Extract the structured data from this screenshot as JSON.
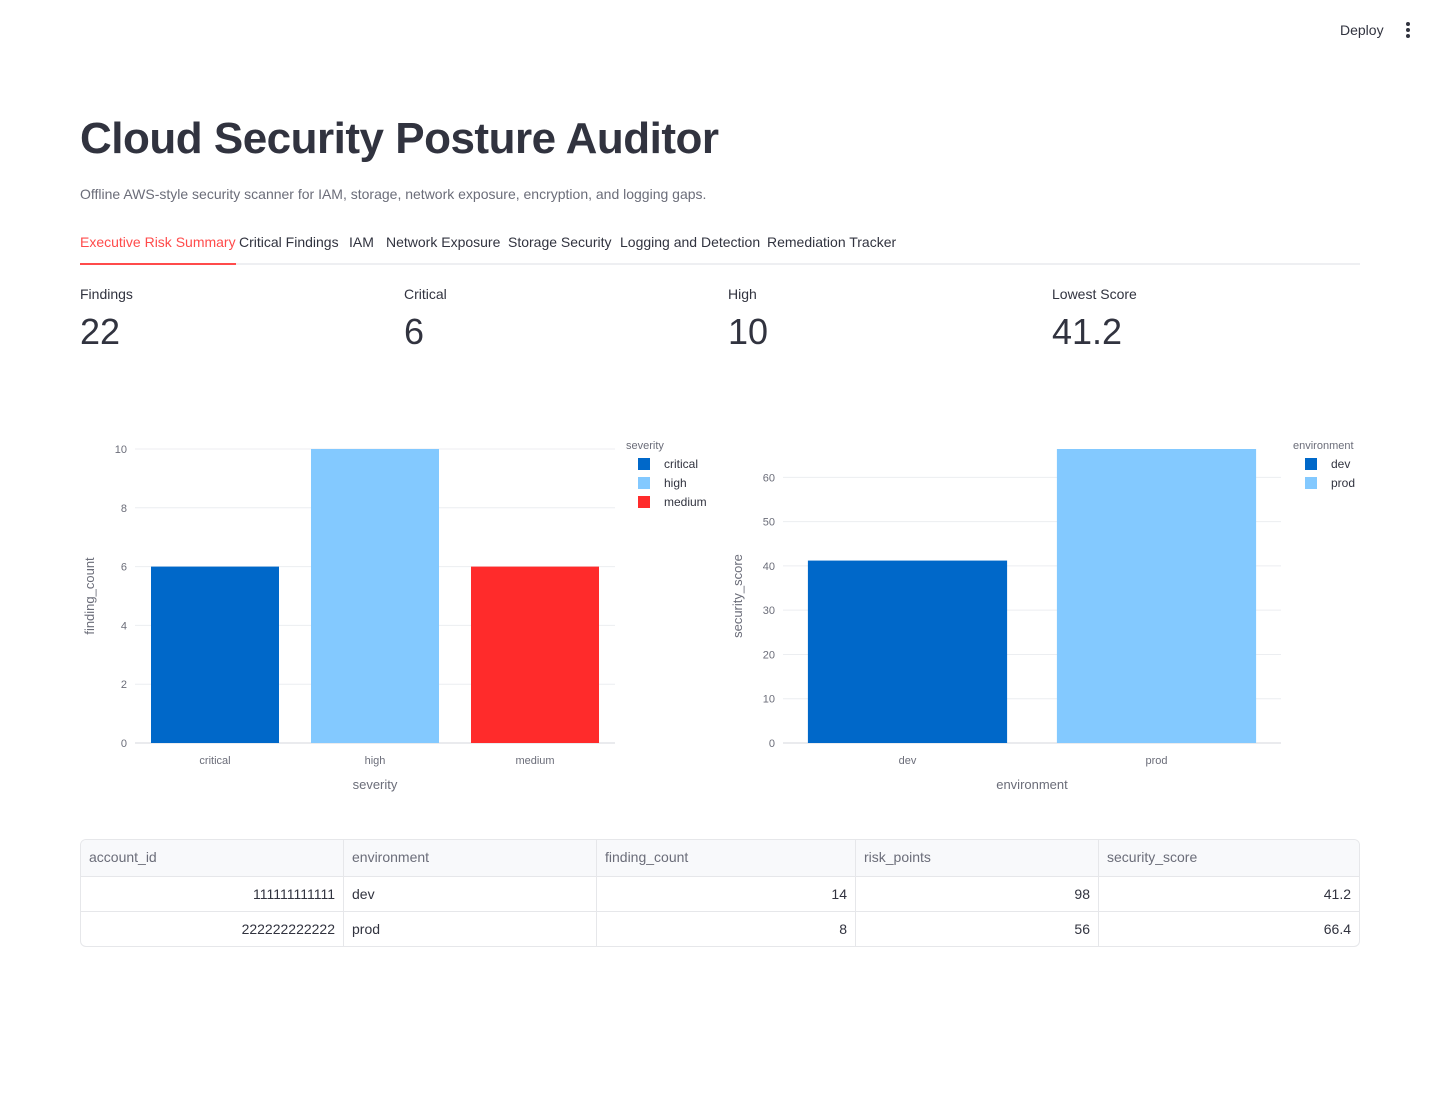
{
  "header": {
    "deploy_label": "Deploy"
  },
  "page": {
    "title": "Cloud Security Posture Auditor",
    "subtitle": "Offline AWS-style security scanner for IAM, storage, network exposure, encryption, and logging gaps."
  },
  "tabs": [
    {
      "label": "Executive Risk Summary",
      "active": true
    },
    {
      "label": "Critical Findings"
    },
    {
      "label": "IAM"
    },
    {
      "label": "Network Exposure"
    },
    {
      "label": "Storage Security"
    },
    {
      "label": "Logging and Detection"
    },
    {
      "label": "Remediation Tracker"
    }
  ],
  "metrics": [
    {
      "label": "Findings",
      "value": "22"
    },
    {
      "label": "Critical",
      "value": "6"
    },
    {
      "label": "High",
      "value": "10"
    },
    {
      "label": "Lowest Score",
      "value": "41.2"
    }
  ],
  "chart_data": [
    {
      "type": "bar",
      "categories": [
        "critical",
        "high",
        "medium"
      ],
      "values": [
        6,
        10,
        6
      ],
      "colors": [
        "#0068c9",
        "#83c9ff",
        "#ff2b2b"
      ],
      "xlabel": "severity",
      "ylabel": "finding_count",
      "ylim": [
        0,
        10
      ],
      "yticks": [
        "0",
        "2",
        "4",
        "6",
        "8",
        "10"
      ],
      "legend": {
        "title": "severity",
        "position": "top-right",
        "entries": [
          "critical",
          "high",
          "medium"
        ]
      },
      "grid": true
    },
    {
      "type": "bar",
      "categories": [
        "dev",
        "prod"
      ],
      "values": [
        41.2,
        66.4
      ],
      "colors": [
        "#0068c9",
        "#83c9ff"
      ],
      "xlabel": "environment",
      "ylabel": "security_score",
      "ylim": [
        0,
        66.4
      ],
      "yticks": [
        "0",
        "10",
        "20",
        "30",
        "40",
        "50",
        "60"
      ],
      "legend": {
        "title": "environment",
        "position": "top-right",
        "entries": [
          "dev",
          "prod"
        ]
      },
      "grid": true
    }
  ],
  "table": {
    "columns": [
      "account_id",
      "environment",
      "finding_count",
      "risk_points",
      "security_score"
    ],
    "rows": [
      [
        "111111111111",
        "dev",
        "14",
        "98",
        "41.2"
      ],
      [
        "222222222222",
        "prod",
        "8",
        "56",
        "66.4"
      ]
    ]
  }
}
